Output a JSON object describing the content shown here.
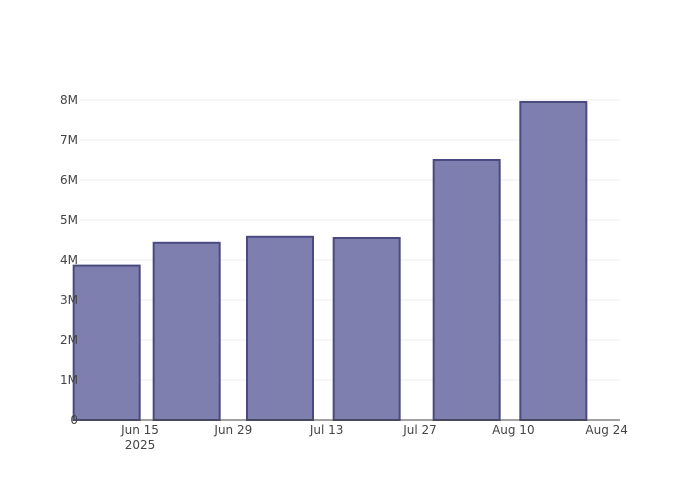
{
  "chart_data": {
    "type": "bar",
    "x": [
      "2025-06-10",
      "2025-06-22",
      "2025-07-06",
      "2025-07-19",
      "2025-08-03",
      "2025-08-16"
    ],
    "values": [
      3860000,
      4430000,
      4580000,
      4550000,
      6500000,
      7950000
    ],
    "x_ticks": [
      {
        "date": "2025-06-15",
        "label": "Jun 15",
        "sublabel": "2025"
      },
      {
        "date": "2025-06-29",
        "label": "Jun 29",
        "sublabel": ""
      },
      {
        "date": "2025-07-13",
        "label": "Jul 13",
        "sublabel": ""
      },
      {
        "date": "2025-07-27",
        "label": "Jul 27",
        "sublabel": ""
      },
      {
        "date": "2025-08-10",
        "label": "Aug 10",
        "sublabel": ""
      },
      {
        "date": "2025-08-24",
        "label": "Aug 24",
        "sublabel": ""
      }
    ],
    "y_ticks": [
      {
        "value": 0,
        "label": "0"
      },
      {
        "value": 1000000,
        "label": "1M"
      },
      {
        "value": 2000000,
        "label": "2M"
      },
      {
        "value": 3000000,
        "label": "3M"
      },
      {
        "value": 4000000,
        "label": "4M"
      },
      {
        "value": 5000000,
        "label": "5M"
      },
      {
        "value": 6000000,
        "label": "6M"
      },
      {
        "value": 7000000,
        "label": "7M"
      },
      {
        "value": 8000000,
        "label": "8M"
      }
    ],
    "xlim": [
      "2025-06-06",
      "2025-08-26"
    ],
    "ylim": [
      0,
      8000000
    ],
    "title": "",
    "xlabel": "",
    "ylabel": "",
    "grid": true,
    "bar_fill": "#7f7faf",
    "bar_stroke": "#4a4a80"
  }
}
